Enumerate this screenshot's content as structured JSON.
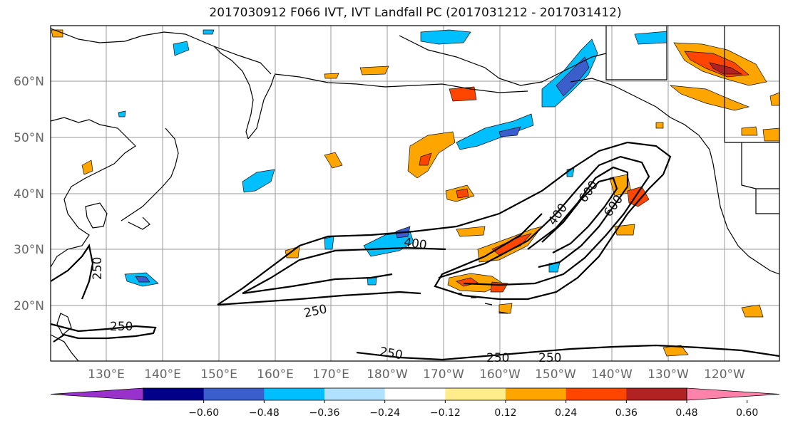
{
  "title": "2017030912 F066 IVT, IVT Landfall PC (2017031212 - 2017031412)",
  "lat_labels": [
    "60°N",
    "50°N",
    "40°N",
    "30°N",
    "20°N"
  ],
  "lon_labels": [
    "130°E",
    "140°E",
    "150°E",
    "160°E",
    "170°E",
    "180°W",
    "170°W",
    "160°W",
    "150°W",
    "140°W",
    "130°W",
    "120°W"
  ],
  "colorbar": {
    "colors": [
      "#9932cc",
      "#00008b",
      "#3a5fcd",
      "#00bfff",
      "#b0e2ff",
      "#ffffff",
      "#ffec8b",
      "#ffa500",
      "#ff4500",
      "#b22222",
      "#ff82ab"
    ],
    "tick_labels": [
      "-0.60",
      "-0.48",
      "-0.36",
      "-0.24",
      "-0.12",
      "0.12",
      "0.24",
      "0.36",
      "0.48",
      "0.60"
    ]
  },
  "contour_labels": [
    "250",
    "250",
    "250",
    "250",
    "250",
    "250",
    "400",
    "400",
    "600",
    "600"
  ]
}
